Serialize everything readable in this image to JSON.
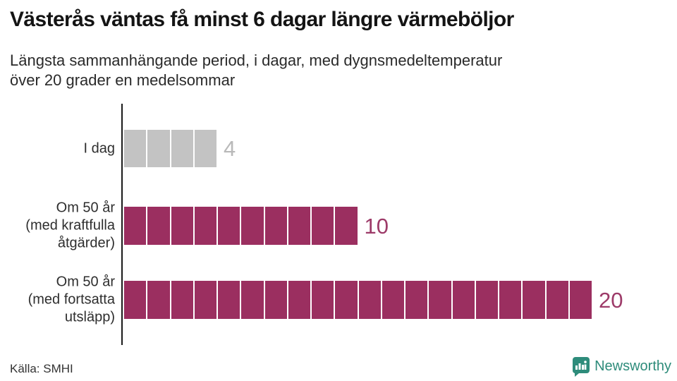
{
  "header": {
    "title": "Västerås väntas få minst 6 dagar längre värmeböljor",
    "subtitle": "Längsta sammanhängande period, i dagar, med dygnsmedeltemperatur\növer 20 grader en medelsommar"
  },
  "footer": {
    "source": "Källa: SMHI",
    "brand_name": "Newsworthy",
    "brand_color": "#2E8C7B",
    "brand_icon": "newsworthy-chart-bubble-icon"
  },
  "chart_data": {
    "type": "bar",
    "orientation": "horizontal",
    "unit": "dagar",
    "title": "Västerås väntas få minst 6 dagar längre värmeböljor",
    "xlabel": "",
    "ylabel": "",
    "xlim": [
      0,
      20
    ],
    "grid": false,
    "legend": false,
    "segmented_unit_bars": true,
    "categories": [
      "I dag",
      "Om 50 år (med kraftfulla åtgärder)",
      "Om 50 år (med fortsatta utsläpp)"
    ],
    "values": [
      4,
      10,
      20
    ],
    "bars": [
      {
        "label_lines": [
          "I dag"
        ],
        "value": 4,
        "bar_color": "#c3c3c3",
        "value_color": "#b9b9b9"
      },
      {
        "label_lines": [
          "Om 50 år",
          "(med kraftfulla",
          "åtgärder)"
        ],
        "value": 10,
        "bar_color": "#9B2F60",
        "value_color": "#9d3b69"
      },
      {
        "label_lines": [
          "Om 50 år",
          "(med fortsatta",
          "utsläpp)"
        ],
        "value": 20,
        "bar_color": "#9B2F60",
        "value_color": "#9d3b69"
      }
    ]
  }
}
